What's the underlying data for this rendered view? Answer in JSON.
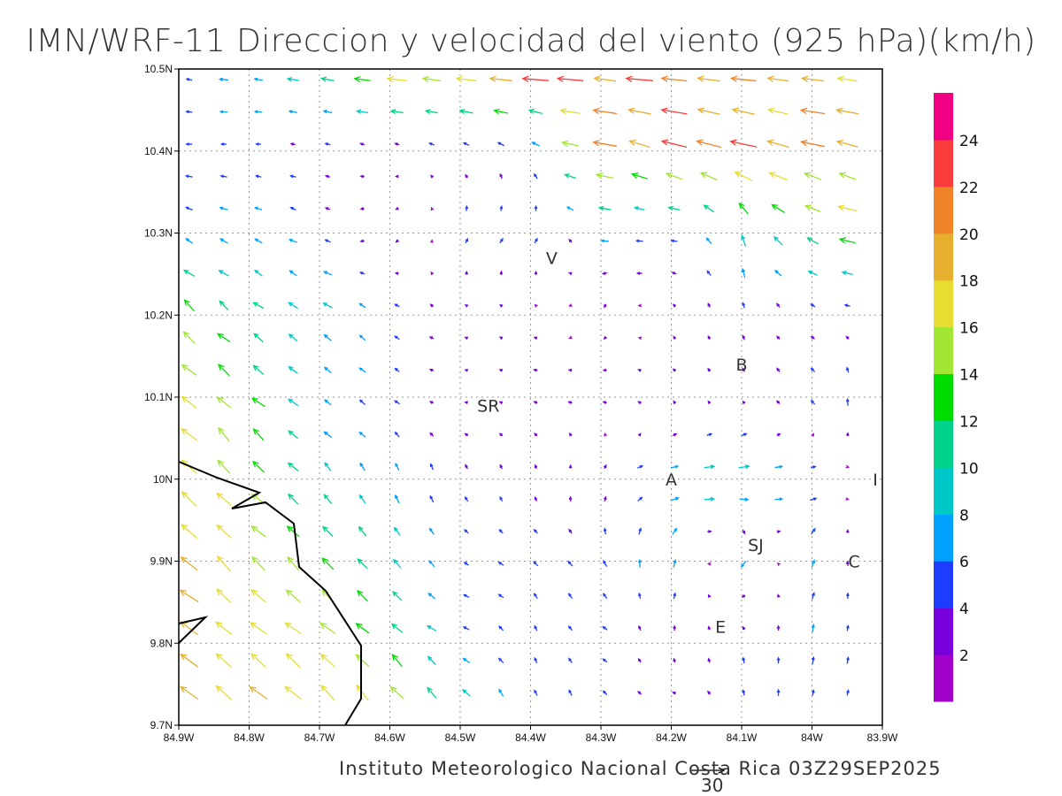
{
  "title": "IMN/WRF-11 Direccion y velocidad del viento (925 hPa)(km/h)",
  "footer": "Instituto Meteorologico Nacional Costa Rica 03Z29SEP2025",
  "reference_vector": {
    "label": "30",
    "value": 30
  },
  "chart_data": {
    "type": "vector-field",
    "units": "km/h",
    "level": "925 hPa",
    "lon_ticks": [
      "84.9W",
      "84.8W",
      "84.7W",
      "84.6W",
      "84.5W",
      "84.4W",
      "84.3W",
      "84.2W",
      "84.1W",
      "84W",
      "83.9W"
    ],
    "lat_ticks": [
      "10.5N",
      "10.4N",
      "10.3N",
      "10.2N",
      "10.1N",
      "10N",
      "9.9N",
      "9.8N",
      "9.7N"
    ],
    "lon_range": [
      -84.9,
      -83.9
    ],
    "lat_range": [
      9.7,
      10.5
    ],
    "grid_note": "u,v (km/h) at 0.1 degree grid, rows from 10.5N to 9.7N, cols from 84.9W to 83.9W",
    "uv": [
      [
        [
          -5,
          1
        ],
        [
          -8,
          1
        ],
        [
          -12,
          2
        ],
        [
          -18,
          2
        ],
        [
          -20,
          2
        ],
        [
          -22,
          2
        ],
        [
          -21,
          2
        ],
        [
          -20,
          2
        ],
        [
          -19,
          2
        ],
        [
          -18,
          2
        ],
        [
          -17,
          2
        ]
      ],
      [
        [
          -6,
          0
        ],
        [
          -4,
          0
        ],
        [
          -3,
          1
        ],
        [
          -2,
          1
        ],
        [
          -3,
          2
        ],
        [
          -4,
          3
        ],
        [
          -18,
          4
        ],
        [
          -20,
          6
        ],
        [
          -20,
          6
        ],
        [
          -18,
          5
        ],
        [
          -18,
          5
        ]
      ],
      [
        [
          -6,
          3
        ],
        [
          -7,
          3
        ],
        [
          -5,
          2
        ],
        [
          -2,
          -3
        ],
        [
          2,
          4
        ],
        [
          3,
          5
        ],
        [
          -6,
          1
        ],
        [
          -6,
          0
        ],
        [
          -3,
          10
        ],
        [
          -12,
          5
        ],
        [
          -14,
          3
        ]
      ],
      [
        [
          -10,
          10
        ],
        [
          -8,
          6
        ],
        [
          -8,
          5
        ],
        [
          -4,
          3
        ],
        [
          -2,
          1
        ],
        [
          -2,
          1
        ],
        [
          -1,
          -3
        ],
        [
          -1,
          2
        ],
        [
          -1,
          4
        ],
        [
          -2,
          2
        ],
        [
          -3,
          0
        ]
      ],
      [
        [
          -12,
          11
        ],
        [
          -10,
          9
        ],
        [
          -6,
          4
        ],
        [
          -4,
          3
        ],
        [
          -2,
          0
        ],
        [
          -3,
          1
        ],
        [
          -3,
          1
        ],
        [
          -2,
          2
        ],
        [
          -2,
          2
        ],
        [
          -4,
          3
        ],
        [
          3,
          9
        ]
      ],
      [
        [
          -14,
          12
        ],
        [
          -10,
          10
        ],
        [
          -6,
          7
        ],
        [
          -3,
          6
        ],
        [
          -2,
          4
        ],
        [
          -1,
          3
        ],
        [
          2,
          3
        ],
        [
          8,
          1
        ],
        [
          12,
          1
        ],
        [
          6,
          0
        ],
        [
          -3,
          -3
        ]
      ],
      [
        [
          -14,
          12
        ],
        [
          -12,
          11
        ],
        [
          -10,
          10
        ],
        [
          -6,
          8
        ],
        [
          -4,
          2
        ],
        [
          -4,
          3
        ],
        [
          -3,
          5
        ],
        [
          2,
          7
        ],
        [
          -4,
          -6
        ],
        [
          2,
          7
        ],
        [
          -3,
          1
        ]
      ],
      [
        [
          -14,
          12
        ],
        [
          -13,
          11
        ],
        [
          -12,
          11
        ],
        [
          -9,
          9
        ],
        [
          -6,
          2
        ],
        [
          -1,
          5
        ],
        [
          -4,
          2
        ],
        [
          0,
          4
        ],
        [
          -1,
          4
        ],
        [
          1,
          5
        ],
        [
          1,
          5
        ]
      ],
      [
        [
          -13,
          12
        ],
        [
          -14,
          12
        ],
        [
          -13,
          12
        ],
        [
          -12,
          14
        ],
        [
          -6,
          9
        ],
        [
          -3,
          4
        ],
        [
          -2,
          5
        ],
        [
          -4,
          -1
        ],
        [
          -1,
          5
        ],
        [
          1,
          5
        ],
        [
          1,
          4
        ]
      ]
    ],
    "colorbar": {
      "levels": [
        "2",
        "4",
        "6",
        "8",
        "10",
        "12",
        "14",
        "16",
        "18",
        "20",
        "22",
        "24"
      ],
      "colors": [
        "#a000c8",
        "#7800dc",
        "#1e3cff",
        "#00a0ff",
        "#00c8c8",
        "#00d28c",
        "#00dc00",
        "#a0e632",
        "#e6dc32",
        "#e6af2d",
        "#f08228",
        "#fa3c3c",
        "#f00082"
      ]
    },
    "places": [
      {
        "label": "V",
        "lon": -84.37,
        "lat": 10.27
      },
      {
        "label": "B",
        "lon": -84.1,
        "lat": 10.14
      },
      {
        "label": "SR",
        "lon": -84.46,
        "lat": 10.09
      },
      {
        "label": "A",
        "lon": -84.2,
        "lat": 10.0
      },
      {
        "label": "SJ",
        "lon": -84.08,
        "lat": 9.92
      },
      {
        "label": "C",
        "lon": -83.94,
        "lat": 9.9
      },
      {
        "label": "E",
        "lon": -84.13,
        "lat": 9.82
      },
      {
        "label": "I",
        "lon": -83.91,
        "lat": 10.0
      }
    ]
  }
}
